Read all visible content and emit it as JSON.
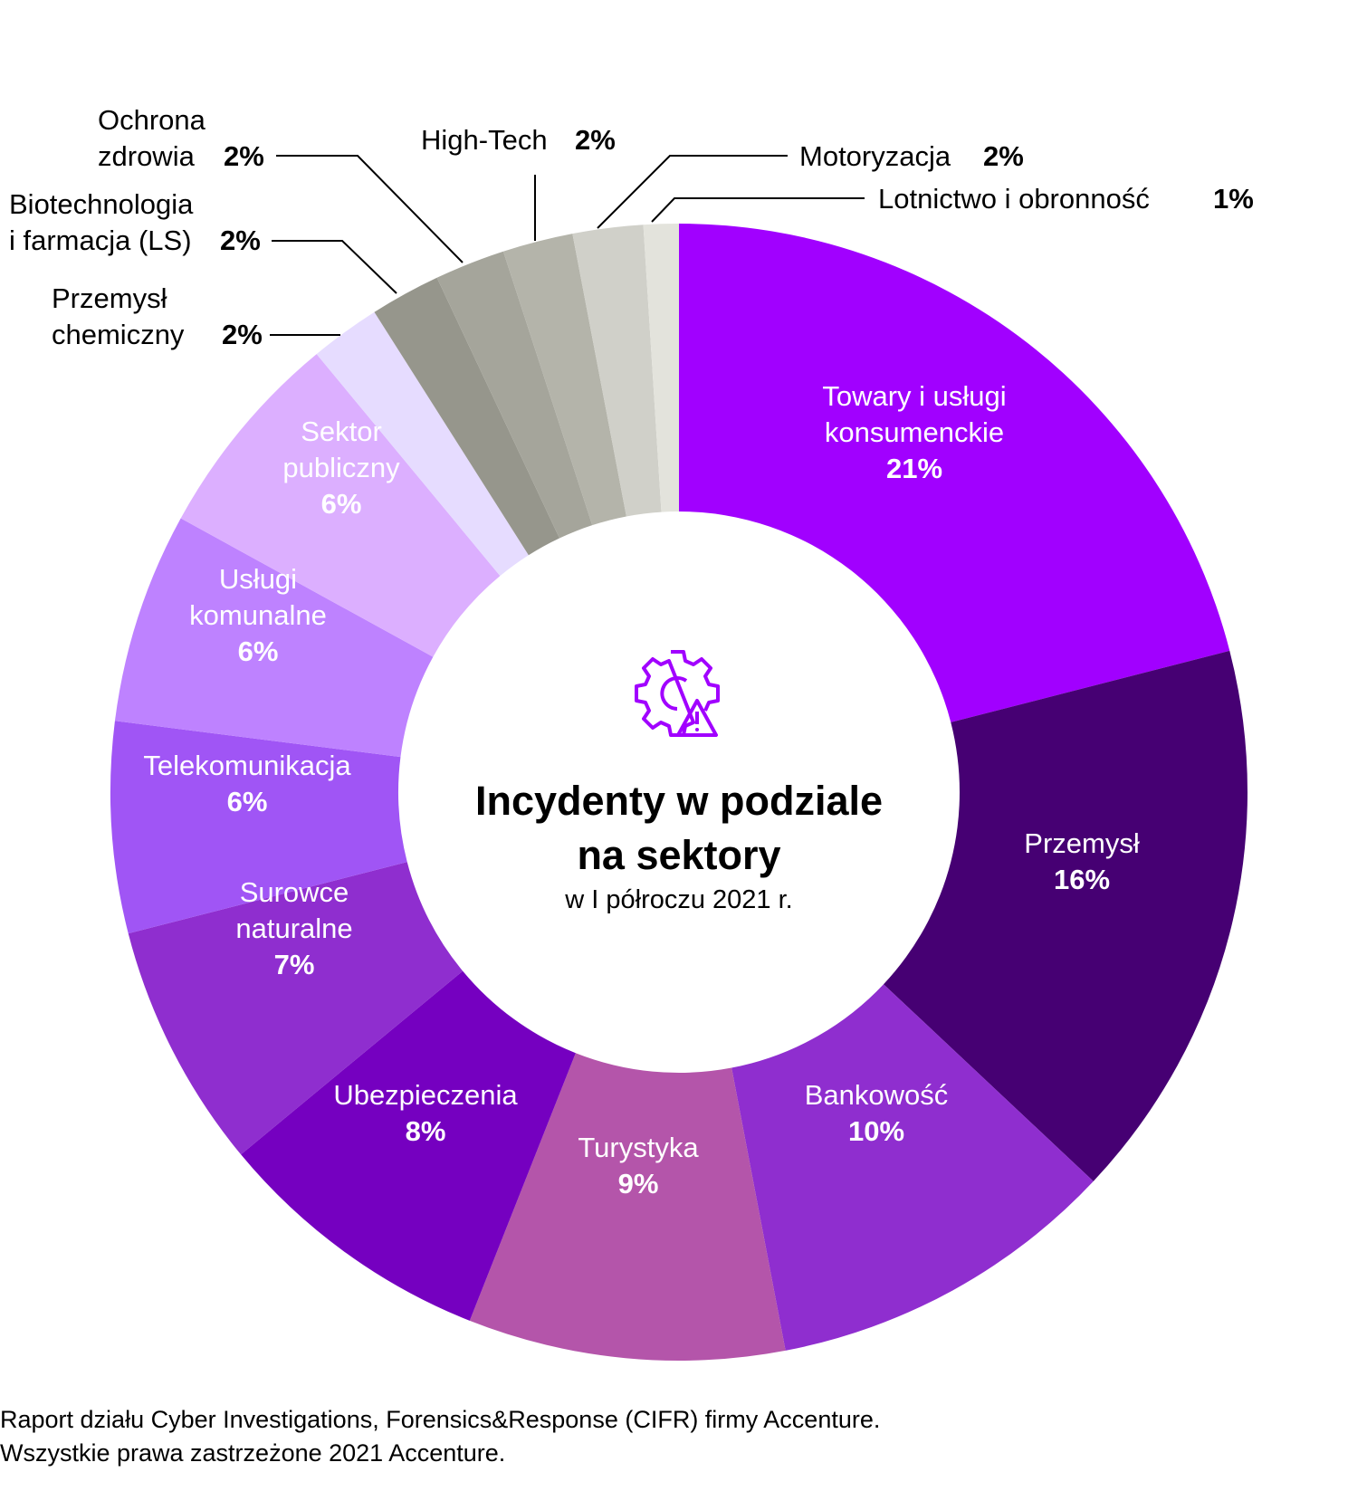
{
  "chart_data": {
    "type": "pie",
    "title": "Incydenty w podziale na sektory",
    "subtitle": "w I półroczu 2021 r.",
    "unit": "%",
    "slices": [
      {
        "label_lines": [
          "Towary i usługi",
          "konsumenckie"
        ],
        "value": 21,
        "value_label": "21%",
        "color": "#a100ff"
      },
      {
        "label_lines": [
          "Przemysł"
        ],
        "value": 16,
        "value_label": "16%",
        "color": "#460073"
      },
      {
        "label_lines": [
          "Bankowość"
        ],
        "value": 10,
        "value_label": "10%",
        "color": "#8f2ecf"
      },
      {
        "label_lines": [
          "Turystyka"
        ],
        "value": 9,
        "value_label": "9%",
        "color": "#b455aa"
      },
      {
        "label_lines": [
          "Ubezpieczenia"
        ],
        "value": 8,
        "value_label": "8%",
        "color": "#7500c0"
      },
      {
        "label_lines": [
          "Surowce",
          "naturalne"
        ],
        "value": 7,
        "value_label": "7%",
        "color": "#8f2ecf"
      },
      {
        "label_lines": [
          "Telekomunikacja"
        ],
        "value": 6,
        "value_label": "6%",
        "color": "#a055f5"
      },
      {
        "label_lines": [
          "Usługi",
          "komunalne"
        ],
        "value": 6,
        "value_label": "6%",
        "color": "#be82ff"
      },
      {
        "label_lines": [
          "Sektor",
          "publiczny"
        ],
        "value": 6,
        "value_label": "6%",
        "color": "#dcafff"
      },
      {
        "label_lines": [
          "Przemysł",
          "chemiczny"
        ],
        "value": 2,
        "value_label": "2%",
        "color": "#e6dcff"
      },
      {
        "label_lines": [
          "Biotechnologia",
          "i farmacja (LS)"
        ],
        "value": 2,
        "value_label": "2%",
        "color": "#96968c"
      },
      {
        "label_lines": [
          "Ochrona",
          "zdrowia"
        ],
        "value": 2,
        "value_label": "2%",
        "color": "#a5a59b"
      },
      {
        "label_lines": [
          "High-Tech"
        ],
        "value": 2,
        "value_label": "2%",
        "color": "#b4b4aa"
      },
      {
        "label_lines": [
          "Motoryzacja"
        ],
        "value": 2,
        "value_label": "2%",
        "color": "#d0d0c9"
      },
      {
        "label_lines": [
          "Lotnictwo i obronność"
        ],
        "value": 1,
        "value_label": "1%",
        "color": "#e3e3dc"
      }
    ]
  },
  "icon": {
    "name": "gear-warning-icon",
    "color": "#a100ff"
  },
  "footer": {
    "line1": "Raport działu Cyber Investigations, Forensics&Response (CIFR) firmy Accenture.",
    "line2": "Wszystkie prawa zastrzeżone 2021 Accenture."
  }
}
